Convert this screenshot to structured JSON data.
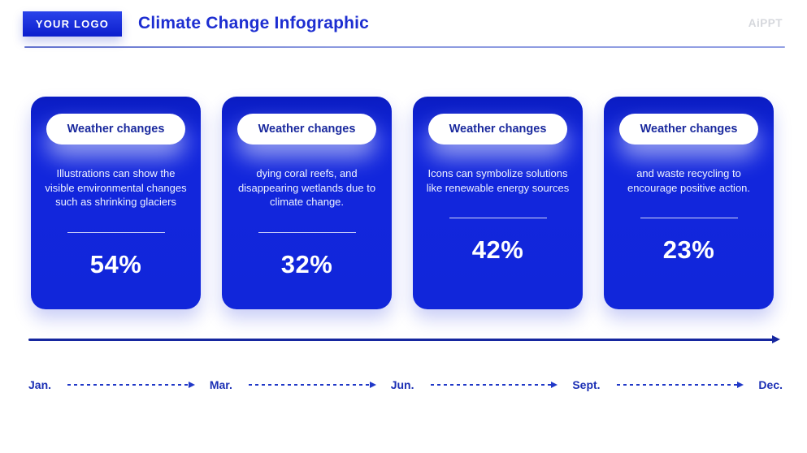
{
  "header": {
    "logo_text": "YOUR LOGO",
    "title": "Climate Change Infographic",
    "watermark": "AiPPT"
  },
  "cards": [
    {
      "pill_label": "Weather changes",
      "description": "Illustrations can show the visible environmental changes such as shrinking glaciers",
      "percent": "54%"
    },
    {
      "pill_label": "Weather changes",
      "description": "dying coral reefs, and disappearing wetlands due to climate change.",
      "percent": "32%"
    },
    {
      "pill_label": "Weather changes",
      "description": "Icons can symbolize solutions like renewable energy sources",
      "percent": "42%"
    },
    {
      "pill_label": "Weather changes",
      "description": "and waste recycling to encourage positive action.",
      "percent": "23%"
    }
  ],
  "timeline": {
    "months": [
      "Jan.",
      "Mar.",
      "Jun.",
      "Sept.",
      "Dec."
    ]
  },
  "colors": {
    "card_blue": "#1126DA",
    "card_blue_dark": "#0A1CC2",
    "title_blue": "#1D2ED1",
    "pill_text_blue": "#1B2A9E",
    "timeline_blue": "#16279F",
    "month_label_blue": "#1B2FB4",
    "header_rule_lavender": "#8B99DF",
    "watermark_gray": "#D5D7DC"
  }
}
